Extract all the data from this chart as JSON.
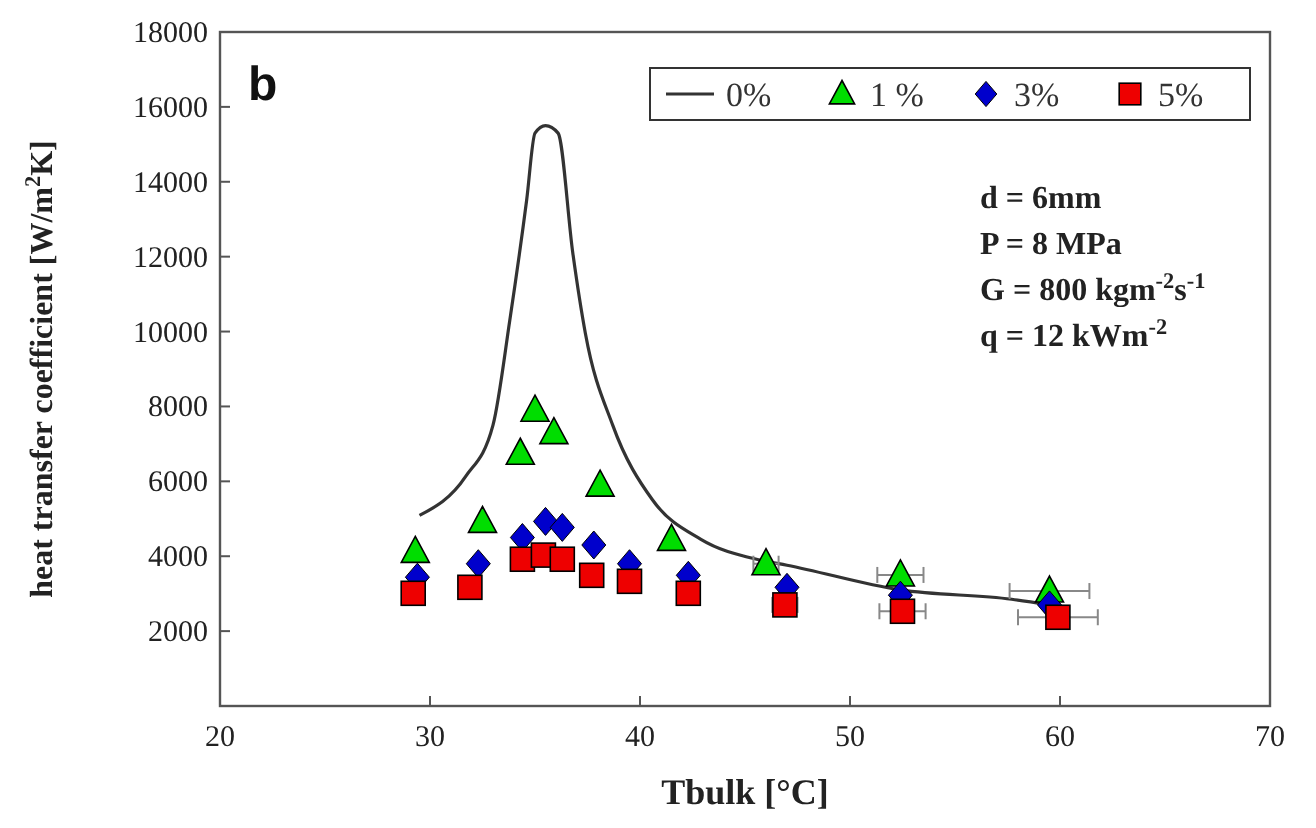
{
  "chart_data": {
    "type": "scatter",
    "xlabel": "Tbulk [°C]",
    "ylabel": "heat transfer coefficient [W/m$^{2}$K]",
    "xlim": [
      20,
      70
    ],
    "xticks": [
      20,
      30,
      40,
      50,
      60,
      70
    ],
    "ylim": [
      0,
      18000
    ],
    "yticks": [
      {
        "value": 0,
        "label": null
      },
      2000,
      4000,
      6000,
      8000,
      10000,
      12000,
      14000,
      16000,
      18000
    ],
    "grid": false,
    "legend": "top right",
    "annotations": [
      "b",
      "d = 6mm",
      "P = 8 MPa",
      "G = 800 kgm$^{-2}$s$^{-1}$",
      "q = 12 kWm$^{-2}$"
    ],
    "series": [
      {
        "name": "0%",
        "type": "line",
        "color": "#333333",
        "marker": "none",
        "line_style": "solid",
        "x": [
          29.5,
          31.7,
          33.0,
          33.8,
          34.6,
          35.0,
          35.5,
          36.1,
          36.8,
          37.4,
          38.7,
          40.6,
          42.9,
          45.7,
          47.0,
          52.4,
          57.7,
          59.5
        ],
        "values": [
          5090,
          6130,
          7500,
          10300,
          13500,
          15300,
          15500,
          15300,
          12100,
          9950,
          7500,
          5500,
          4450,
          3900,
          3760,
          3100,
          2850,
          2700
        ]
      },
      {
        "name": "1 %",
        "color": "#00dd00",
        "marker": "triangle",
        "x": [
          29.3,
          32.5,
          34.3,
          35.0,
          35.9,
          38.1,
          41.5,
          46.0,
          52.4,
          59.5
        ],
        "values": [
          4130,
          4930,
          6750,
          7900,
          7300,
          5900,
          4450,
          3800,
          3500,
          3070
        ],
        "xerrors": [
          null,
          null,
          null,
          null,
          null,
          null,
          null,
          0.6,
          1.1,
          1.9
        ]
      },
      {
        "name": "3%",
        "color": "#0000cc",
        "marker": "diamond",
        "x": [
          29.4,
          32.3,
          34.4,
          35.5,
          36.3,
          37.8,
          39.5,
          42.3,
          47.0,
          52.4,
          59.5
        ],
        "values": [
          3440,
          3800,
          4500,
          4930,
          4770,
          4300,
          3800,
          3490,
          3170,
          2960,
          2700
        ]
      },
      {
        "name": "5%",
        "color": "#ee0000",
        "marker": "square",
        "x": [
          29.2,
          31.9,
          34.4,
          35.4,
          36.3,
          37.7,
          39.5,
          42.3,
          46.9,
          52.5,
          59.9
        ],
        "values": [
          3010,
          3170,
          3920,
          4030,
          3920,
          3490,
          3330,
          3010,
          2700,
          2530,
          2370
        ],
        "xerrors": [
          null,
          null,
          null,
          null,
          null,
          null,
          null,
          null,
          0.6,
          1.1,
          1.9
        ]
      }
    ]
  }
}
